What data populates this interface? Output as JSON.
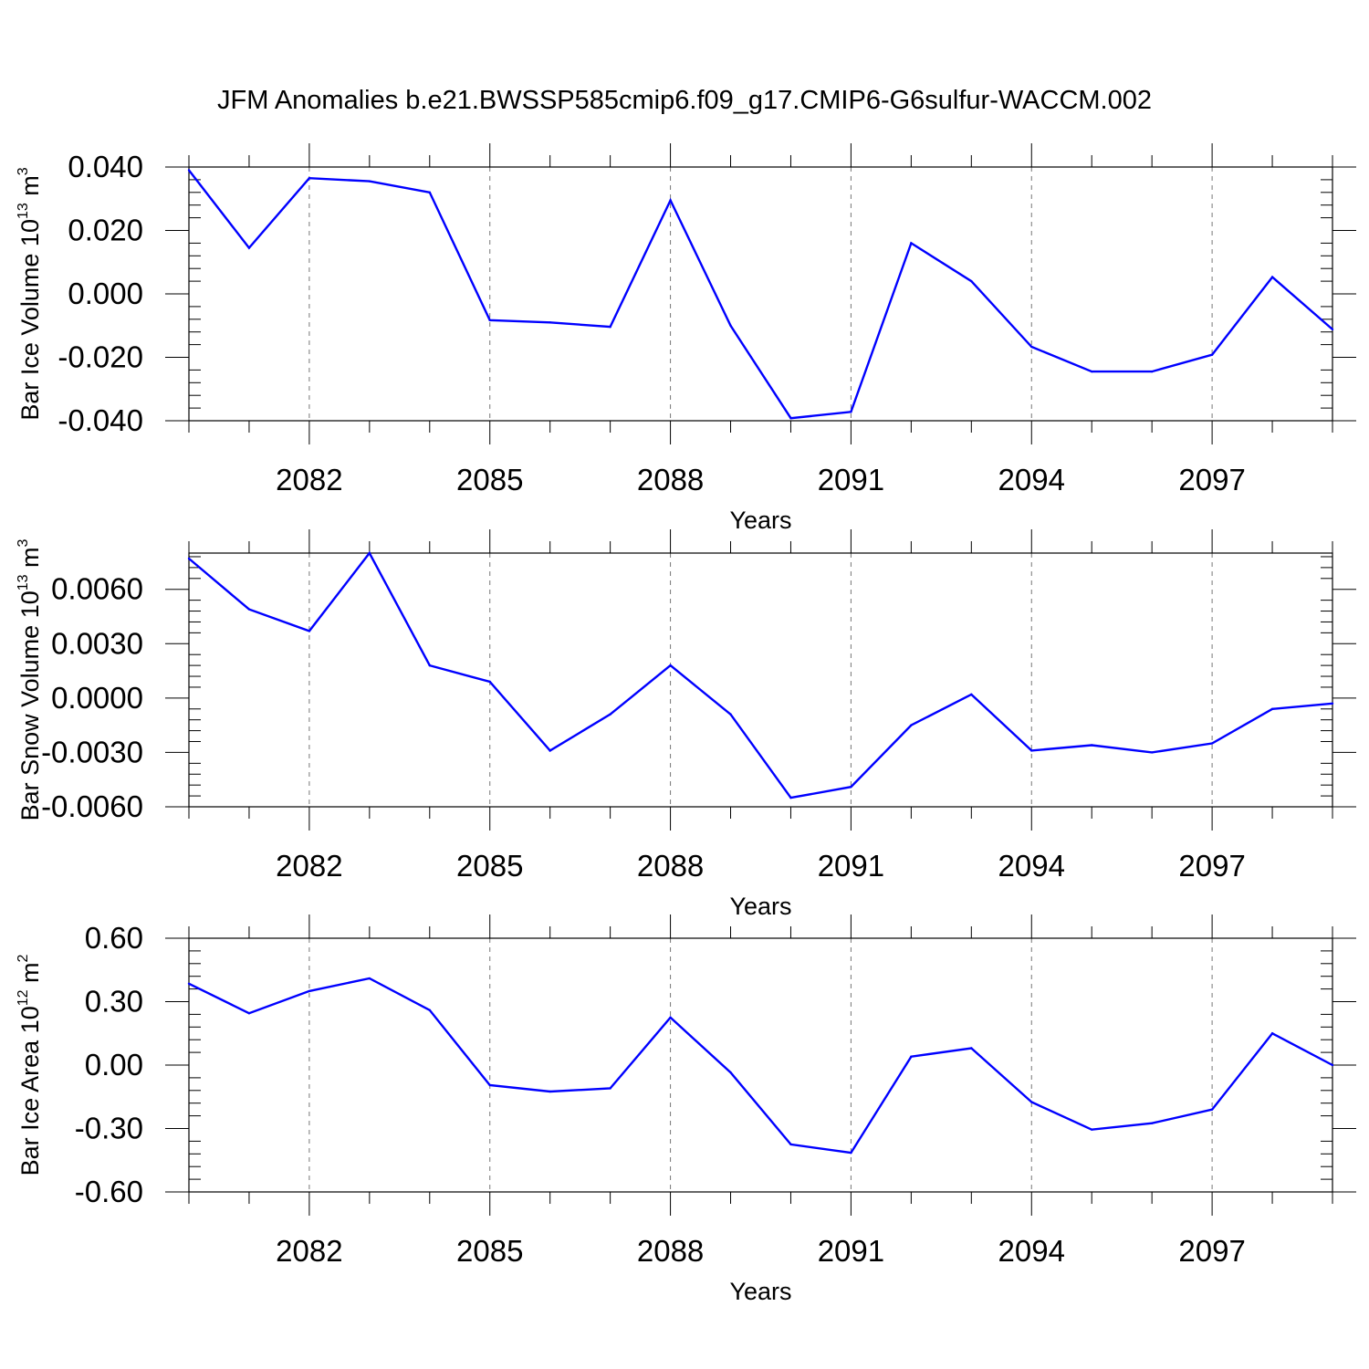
{
  "title": "JFM Anomalies b.e21.BWSSP585cmip6.f09_g17.CMIP6-G6sulfur-WACCM.002",
  "line_color": "#0000ff",
  "chart_data": [
    {
      "type": "line",
      "xlabel": "Years",
      "ylabel": {
        "base": "Bar Ice Volume 10",
        "exp": "13",
        "unit": " m",
        "unit_exp": "3"
      },
      "xlim": [
        2080,
        2099
      ],
      "ylim": [
        -0.04,
        0.04
      ],
      "yticks": [
        -0.04,
        -0.02,
        0.0,
        0.02,
        0.04
      ],
      "ytick_labels": [
        "-0.040",
        "-0.020",
        "0.000",
        "0.020",
        "0.040"
      ],
      "xticks": [
        2082,
        2085,
        2088,
        2091,
        2094,
        2097
      ],
      "xtick_labels": [
        "2082",
        "2085",
        "2088",
        "2091",
        "2094",
        "2097"
      ],
      "x": [
        2080,
        2081,
        2082,
        2083,
        2084,
        2085,
        2086,
        2087,
        2088,
        2089,
        2090,
        2091,
        2092,
        2093,
        2094,
        2095,
        2096,
        2097,
        2098,
        2099
      ],
      "series": [
        {
          "values": [
            0.039,
            0.0145,
            0.0365,
            0.0355,
            0.032,
            -0.0083,
            -0.009,
            -0.0104,
            0.0295,
            -0.01,
            -0.0392,
            -0.0372,
            0.016,
            0.004,
            -0.0167,
            -0.0245,
            -0.0245,
            -0.0192,
            0.0053,
            -0.0112
          ]
        }
      ],
      "grid": "vertical dashed at major x ticks"
    },
    {
      "type": "line",
      "xlabel": "Years",
      "ylabel": {
        "base": "Bar Snow Volume 10",
        "exp": "13",
        "unit": " m",
        "unit_exp": "3"
      },
      "xlim": [
        2080,
        2099
      ],
      "ylim": [
        -0.006,
        0.008
      ],
      "yticks": [
        -0.006,
        -0.003,
        0.0,
        0.003,
        0.006
      ],
      "ytick_labels": [
        "-0.0060",
        "-0.0030",
        "0.0000",
        "0.0030",
        "0.0060"
      ],
      "xticks": [
        2082,
        2085,
        2088,
        2091,
        2094,
        2097
      ],
      "xtick_labels": [
        "2082",
        "2085",
        "2088",
        "2091",
        "2094",
        "2097"
      ],
      "x": [
        2080,
        2081,
        2082,
        2083,
        2084,
        2085,
        2086,
        2087,
        2088,
        2089,
        2090,
        2091,
        2092,
        2093,
        2094,
        2095,
        2096,
        2097,
        2098,
        2099
      ],
      "series": [
        {
          "values": [
            0.0077,
            0.0049,
            0.0037,
            0.008,
            0.0018,
            0.0009,
            -0.0029,
            -0.0009,
            0.0018,
            -0.0009,
            -0.0055,
            -0.0049,
            -0.0015,
            0.0002,
            -0.0029,
            -0.0026,
            -0.003,
            -0.0025,
            -0.0006,
            -0.0003
          ]
        }
      ],
      "grid": "vertical dashed at major x ticks"
    },
    {
      "type": "line",
      "xlabel": "Years",
      "ylabel": {
        "base": "Bar Ice Area 10",
        "exp": "12",
        "unit": " m",
        "unit_exp": "2"
      },
      "xlim": [
        2080,
        2099
      ],
      "ylim": [
        -0.6,
        0.6
      ],
      "yticks": [
        -0.6,
        -0.3,
        0.0,
        0.3,
        0.6
      ],
      "ytick_labels": [
        "-0.60",
        "-0.30",
        "0.00",
        "0.30",
        "0.60"
      ],
      "xticks": [
        2082,
        2085,
        2088,
        2091,
        2094,
        2097
      ],
      "xtick_labels": [
        "2082",
        "2085",
        "2088",
        "2091",
        "2094",
        "2097"
      ],
      "x": [
        2080,
        2081,
        2082,
        2083,
        2084,
        2085,
        2086,
        2087,
        2088,
        2089,
        2090,
        2091,
        2092,
        2093,
        2094,
        2095,
        2096,
        2097,
        2098,
        2099
      ],
      "series": [
        {
          "values": [
            0.385,
            0.245,
            0.35,
            0.41,
            0.26,
            -0.095,
            -0.125,
            -0.11,
            0.225,
            -0.035,
            -0.375,
            -0.415,
            0.04,
            0.08,
            -0.175,
            -0.305,
            -0.275,
            -0.21,
            0.15,
            0.0
          ]
        }
      ],
      "grid": "vertical dashed at major x ticks"
    }
  ]
}
